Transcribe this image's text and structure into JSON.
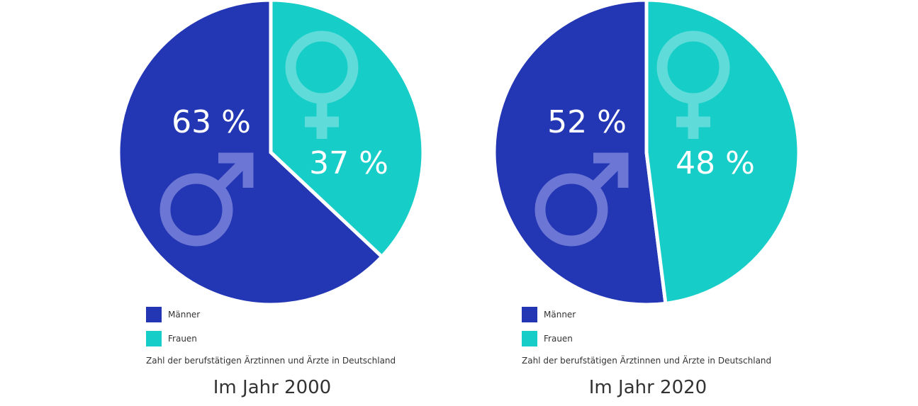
{
  "colors": {
    "men": "#2336b3",
    "women": "#17cdc8",
    "men_symbol": "#6c76d4",
    "women_symbol": "#5fdcd9"
  },
  "icons": {
    "men": "male-symbol-icon",
    "women": "female-symbol-icon"
  },
  "chart_data": [
    {
      "type": "pie",
      "title": "Im Jahr 2000",
      "caption": "Zahl der berufstätigen Ärztinnen und Ärzte in Deutschland",
      "categories": [
        "Männer",
        "Frauen"
      ],
      "values": [
        63,
        37
      ],
      "value_labels": [
        "63 %",
        "37 %"
      ],
      "legend": [
        "Männer",
        "Frauen"
      ],
      "legend_position": "bottom-left"
    },
    {
      "type": "pie",
      "title": "Im Jahr 2020",
      "caption": "Zahl der berufstätigen Ärztinnen und Ärzte in Deutschland",
      "categories": [
        "Männer",
        "Frauen"
      ],
      "values": [
        52,
        48
      ],
      "value_labels": [
        "52 %",
        "48 %"
      ],
      "legend": [
        "Männer",
        "Frauen"
      ],
      "legend_position": "bottom-left"
    }
  ]
}
